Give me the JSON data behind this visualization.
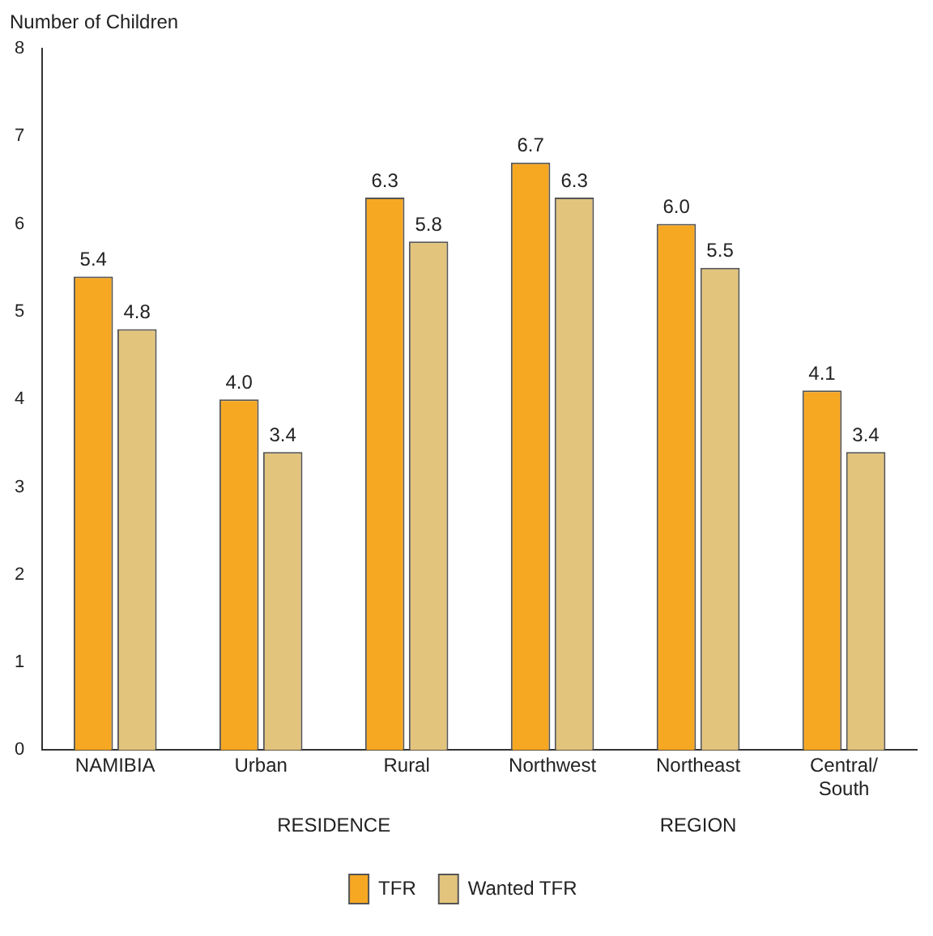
{
  "chart_data": {
    "type": "bar",
    "ylabel": "Number of Children",
    "categories": [
      "NAMIBIA",
      "Urban",
      "Rural",
      "Northwest",
      "Northeast",
      "Central/South"
    ],
    "series": [
      {
        "name": "TFR",
        "color": "#f7a823",
        "values": [
          5.4,
          4.0,
          6.3,
          6.7,
          6.0,
          4.1
        ],
        "value_labels": [
          "5.4",
          "4.0",
          "6.3",
          "6.7",
          "6.0",
          "4.1"
        ]
      },
      {
        "name": "Wanted TFR",
        "color": "#e3c47c",
        "values": [
          4.8,
          3.4,
          5.8,
          6.3,
          5.5,
          3.4
        ],
        "value_labels": [
          "4.8",
          "3.4",
          "5.8",
          "6.3",
          "5.5",
          "3.4"
        ]
      }
    ],
    "ylim": [
      0,
      8
    ],
    "yticks": [
      0,
      1,
      2,
      3,
      4,
      5,
      6,
      7,
      8
    ],
    "grid": false,
    "legend": "bottom",
    "annotations": [
      "RESIDENCE",
      "REGION"
    ]
  }
}
